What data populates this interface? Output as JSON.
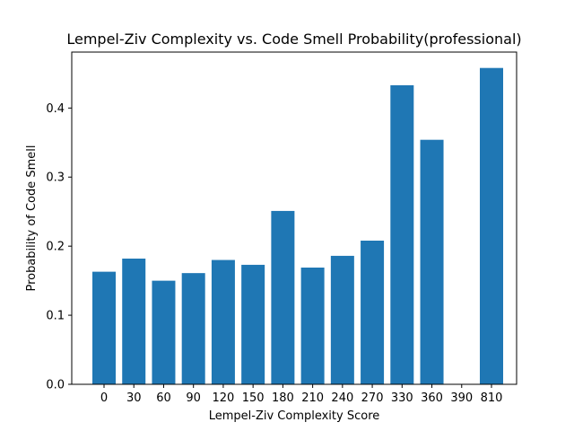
{
  "chart_data": {
    "type": "bar",
    "title": "Lempel-Ziv Complexity vs. Code Smell Probability(professional)",
    "xlabel": "Lempel-Ziv Complexity Score",
    "ylabel": "Probability of Code Smell",
    "categories": [
      "0",
      "30",
      "60",
      "90",
      "120",
      "150",
      "180",
      "210",
      "240",
      "270",
      "330",
      "360",
      "390",
      "810"
    ],
    "values": [
      0.163,
      0.182,
      0.15,
      0.161,
      0.18,
      0.173,
      0.251,
      0.169,
      0.186,
      0.208,
      0.433,
      0.354,
      0.0,
      0.458
    ],
    "yticks": [
      "0.0",
      "0.1",
      "0.2",
      "0.3",
      "0.4"
    ],
    "ylim": [
      0,
      0.481
    ],
    "grid": false,
    "legend": "none",
    "bar_color": "#1f77b4"
  }
}
